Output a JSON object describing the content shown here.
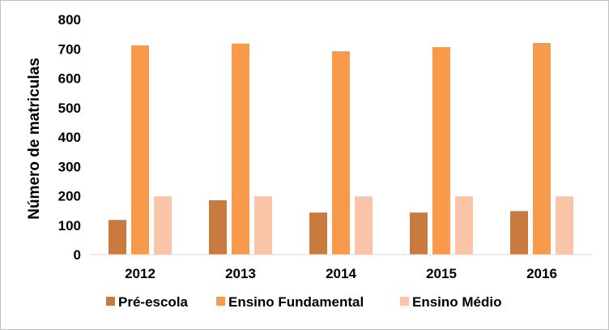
{
  "chart_data": {
    "type": "bar",
    "categories": [
      "2012",
      "2013",
      "2014",
      "2015",
      "2016"
    ],
    "series": [
      {
        "name": "Pré-escola",
        "color": "#C97A3E",
        "values": [
          118,
          185,
          143,
          143,
          148
        ]
      },
      {
        "name": "Ensino Fundamental",
        "color": "#F79A4C",
        "values": [
          712,
          718,
          692,
          706,
          720
        ]
      },
      {
        "name": "Ensino Médio",
        "color": "#F9C4A8",
        "values": [
          198,
          198,
          198,
          198,
          198
        ]
      }
    ],
    "xlabel": "",
    "ylabel": "Número de matriculas",
    "ylim": [
      0,
      800
    ],
    "yticks": [
      0,
      100,
      200,
      300,
      400,
      500,
      600,
      700,
      800
    ],
    "grid": false,
    "legend": "bottom"
  }
}
